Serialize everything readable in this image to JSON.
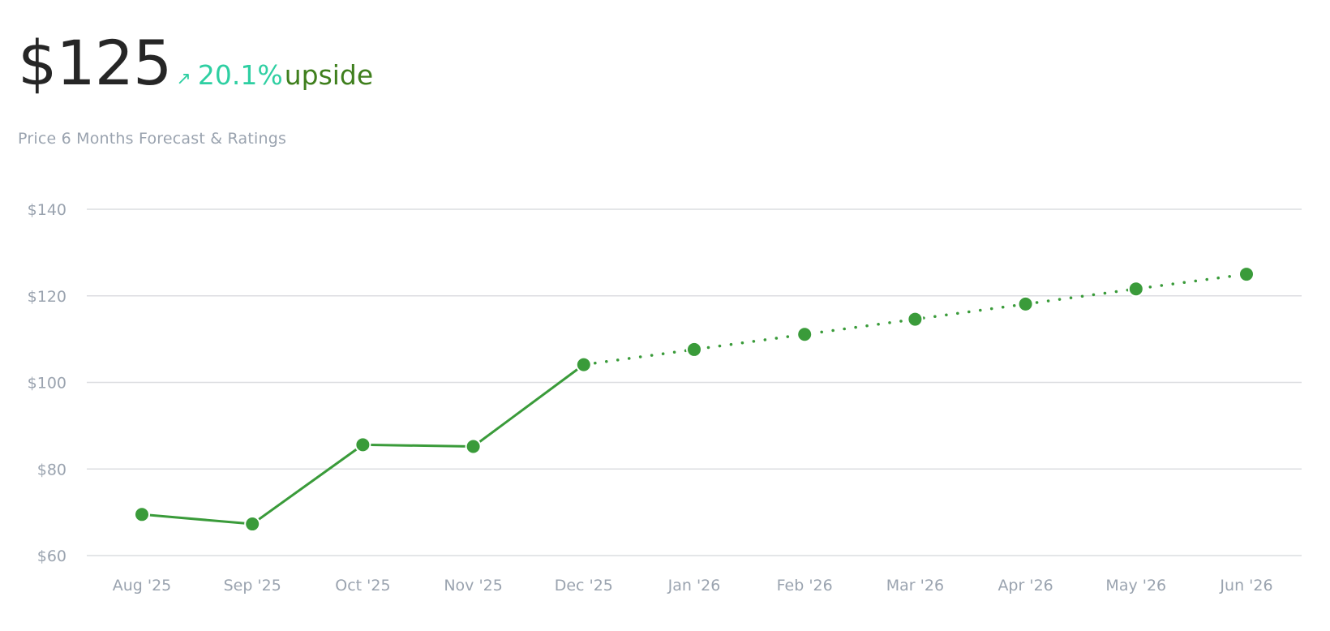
{
  "header": {
    "price": "$125",
    "arrow_icon": "arrow-up-right-icon",
    "arrow_glyph": "↗",
    "upside_pct": "20.1%",
    "upside_label": "upside",
    "subtitle": "Price 6 Months Forecast & Ratings"
  },
  "colors": {
    "line": "#3a9b3a",
    "point": "#3a9b3a",
    "upside_pct": "#2ecfa2",
    "upside_word": "#3f7f1d",
    "grid": "#dcdde1",
    "labels": "#9aa3af"
  },
  "chart_data": {
    "type": "line",
    "title": "",
    "xlabel": "",
    "ylabel": "",
    "categories": [
      "Aug '25",
      "Sep '25",
      "Oct '25",
      "Nov '25",
      "Dec '25",
      "Jan '26",
      "Feb '26",
      "Mar '26",
      "Apr '26",
      "May '26",
      "Jun '26"
    ],
    "y_ticks": [
      140,
      120,
      100,
      80,
      60
    ],
    "y_tick_labels": [
      "$140",
      "$120",
      "$100",
      "$80",
      "$60"
    ],
    "ylim": [
      60,
      140
    ],
    "grid": true,
    "series": [
      {
        "style": "solid",
        "values": [
          69.5,
          67.3,
          85.6,
          85.2,
          104.1,
          null,
          null,
          null,
          null,
          null,
          null
        ]
      },
      {
        "style": "dotted",
        "values": [
          null,
          null,
          null,
          null,
          104.1,
          107.6,
          111.1,
          114.6,
          118.1,
          121.6,
          125.0
        ]
      }
    ]
  }
}
